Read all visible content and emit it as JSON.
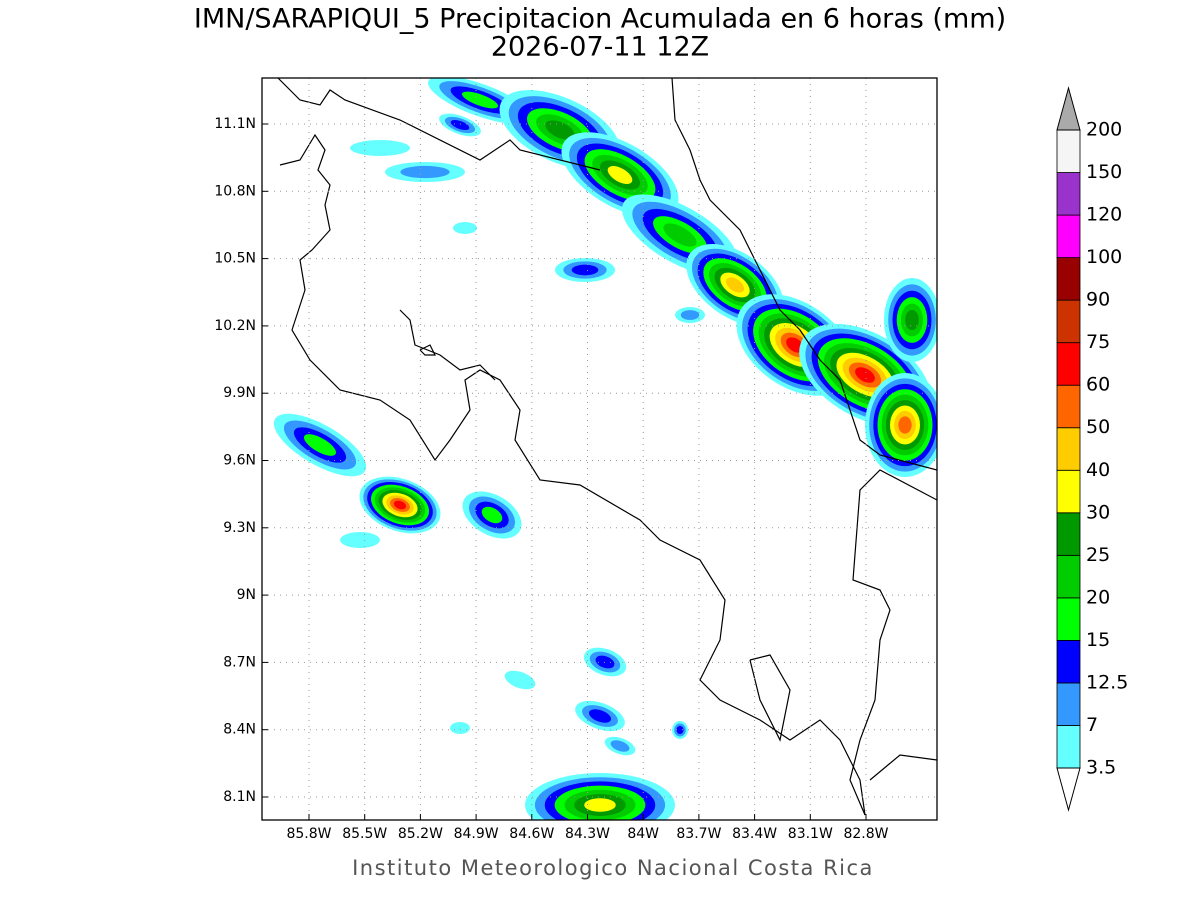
{
  "header": {
    "title": "IMN/SARAPIQUI_5 Precipitacion Acumulada en 6 horas (mm)",
    "subtitle": "2026-07-11 12Z"
  },
  "map": {
    "lon_ticks": [
      "85.8W",
      "85.5W",
      "85.2W",
      "84.9W",
      "84.6W",
      "84.3W",
      "84W",
      "83.7W",
      "83.4W",
      "83.1W",
      "82.8W"
    ],
    "lat_ticks": [
      "11.1N",
      "10.8N",
      "10.5N",
      "10.2N",
      "9.9N",
      "9.6N",
      "9.3N",
      "9N",
      "8.7N",
      "8.4N",
      "8.1N"
    ]
  },
  "legend": {
    "labels": [
      "3.5",
      "7",
      "12.5",
      "15",
      "20",
      "25",
      "30",
      "40",
      "50",
      "60",
      "75",
      "90",
      "100",
      "120",
      "150",
      "200"
    ],
    "colors": [
      "#66ffff",
      "#3399ff",
      "#0000ff",
      "#00ff00",
      "#00cc00",
      "#009900",
      "#ffff00",
      "#ffcc00",
      "#ff6600",
      "#ff0000",
      "#cc3300",
      "#990000",
      "#ff00ff",
      "#9933cc",
      "#f5f5f5"
    ],
    "over_color": "#aaaaaa",
    "under_color": "#ffffff"
  },
  "footer": "Instituto Meteorologico Nacional Costa Rica"
}
